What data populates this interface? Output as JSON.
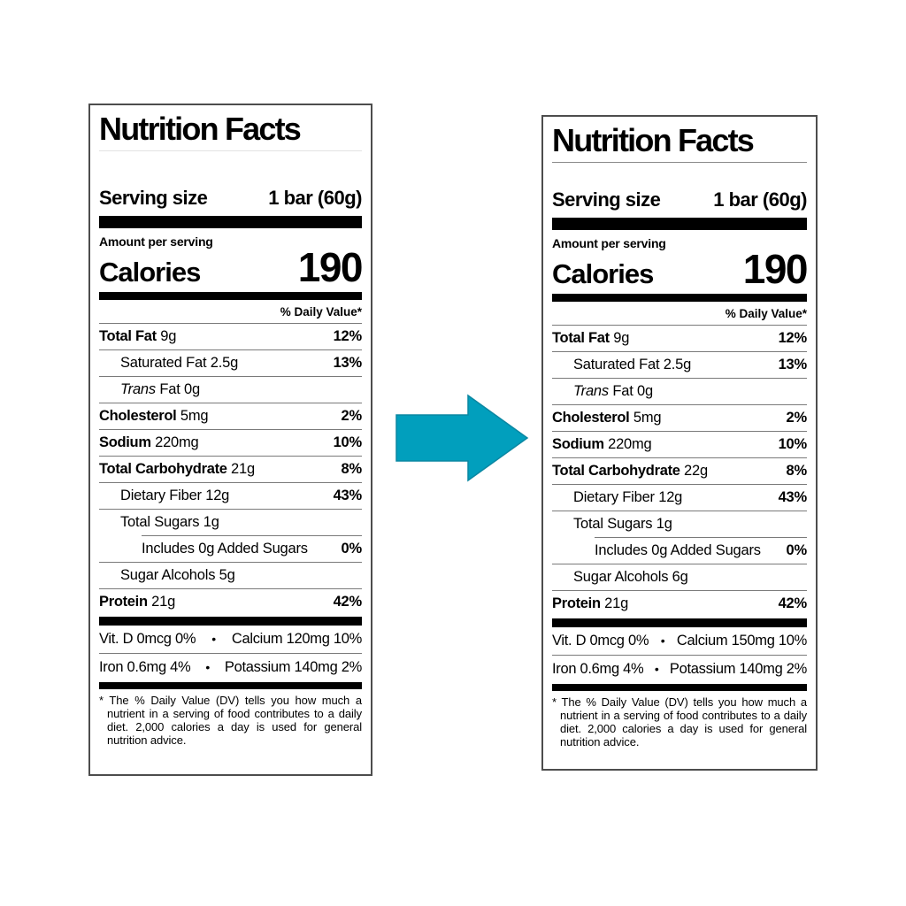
{
  "page": {
    "background": "#ffffff"
  },
  "arrow": {
    "description": "right-arrow",
    "fill_color": "#019FBD",
    "border_color": "#0b87a2"
  },
  "labels": [
    {
      "id": "before",
      "title": "Nutrition Facts",
      "title_rule_color": "#e3e3e3",
      "serving_label": "Serving size",
      "serving_value": "1 bar (60g)",
      "amount_per_serving": "Amount per serving",
      "calories_label": "Calories",
      "calories_value": "190",
      "daily_value_header": "% Daily Value*",
      "rows": [
        {
          "name": "Total Fat",
          "amount": "9g",
          "dv": "12%",
          "bold": true,
          "indent": 0
        },
        {
          "name": "Saturated Fat",
          "amount": "2.5g",
          "dv": "13%",
          "bold": false,
          "indent": 1
        },
        {
          "name_italic": "Trans",
          "name": "Fat",
          "amount": "0g",
          "dv": "",
          "bold": false,
          "indent": 1
        },
        {
          "name": "Cholesterol",
          "amount": "5mg",
          "dv": "2%",
          "bold": true,
          "indent": 0
        },
        {
          "name": "Sodium",
          "amount": "220mg",
          "dv": "10%",
          "bold": true,
          "indent": 0
        },
        {
          "name": "Total Carbohydrate",
          "amount": "21g",
          "dv": "8%",
          "bold": true,
          "indent": 0
        },
        {
          "name": "Dietary Fiber",
          "amount": "12g",
          "dv": "43%",
          "bold": false,
          "indent": 1
        },
        {
          "name": "Total Sugars",
          "amount": "1g",
          "dv": "",
          "bold": false,
          "indent": 1
        },
        {
          "name": "Includes 0g Added Sugars",
          "amount": "",
          "dv": "0%",
          "bold": false,
          "indent": 2,
          "rule_indented": true
        },
        {
          "name": "Sugar Alcohols",
          "amount": "5g",
          "dv": "",
          "bold": false,
          "indent": 1
        },
        {
          "name": "Protein",
          "amount": "21g",
          "dv": "42%",
          "bold": true,
          "indent": 0
        }
      ],
      "micronutrients": {
        "separator": "•",
        "rows": [
          {
            "left": "Vit. D 0mcg 0%",
            "right": "Calcium 120mg 10%"
          },
          {
            "left": "Iron 0.6mg 4%",
            "right": "Potassium 140mg 2%"
          }
        ]
      },
      "footnote": "* The % Daily Value (DV) tells you how much a nutrient in a serving of food contributes to a daily diet. 2,000 calories a day is used for general nutrition advice."
    },
    {
      "id": "after",
      "title": "Nutrition Facts",
      "title_rule_color": "#8a8a8a",
      "serving_label": "Serving size",
      "serving_value": "1 bar (60g)",
      "amount_per_serving": "Amount per serving",
      "calories_label": "Calories",
      "calories_value": "190",
      "daily_value_header": "% Daily Value*",
      "rows": [
        {
          "name": "Total Fat",
          "amount": "9g",
          "dv": "12%",
          "bold": true,
          "indent": 0
        },
        {
          "name": "Saturated Fat",
          "amount": "2.5g",
          "dv": "13%",
          "bold": false,
          "indent": 1
        },
        {
          "name_italic": "Trans",
          "name": "Fat",
          "amount": "0g",
          "dv": "",
          "bold": false,
          "indent": 1
        },
        {
          "name": "Cholesterol",
          "amount": "5mg",
          "dv": "2%",
          "bold": true,
          "indent": 0
        },
        {
          "name": "Sodium",
          "amount": "220mg",
          "dv": "10%",
          "bold": true,
          "indent": 0
        },
        {
          "name": "Total Carbohydrate",
          "amount": "22g",
          "dv": "8%",
          "bold": true,
          "indent": 0
        },
        {
          "name": "Dietary Fiber",
          "amount": "12g",
          "dv": "43%",
          "bold": false,
          "indent": 1
        },
        {
          "name": "Total Sugars",
          "amount": "1g",
          "dv": "",
          "bold": false,
          "indent": 1
        },
        {
          "name": "Includes 0g Added Sugars",
          "amount": "",
          "dv": "0%",
          "bold": false,
          "indent": 2,
          "rule_indented": true
        },
        {
          "name": "Sugar Alcohols",
          "amount": "6g",
          "dv": "",
          "bold": false,
          "indent": 1
        },
        {
          "name": "Protein",
          "amount": "21g",
          "dv": "42%",
          "bold": true,
          "indent": 0
        }
      ],
      "micronutrients": {
        "separator": "•",
        "rows": [
          {
            "left": "Vit. D 0mcg 0%",
            "right": "Calcium 150mg 10%"
          },
          {
            "left": "Iron 0.6mg 4%",
            "right": "Potassium 140mg 2%"
          }
        ]
      },
      "footnote": "* The % Daily Value (DV) tells you how much a nutrient in a serving of food contributes to a daily diet. 2,000 calories a day is used for general nutrition advice."
    }
  ]
}
